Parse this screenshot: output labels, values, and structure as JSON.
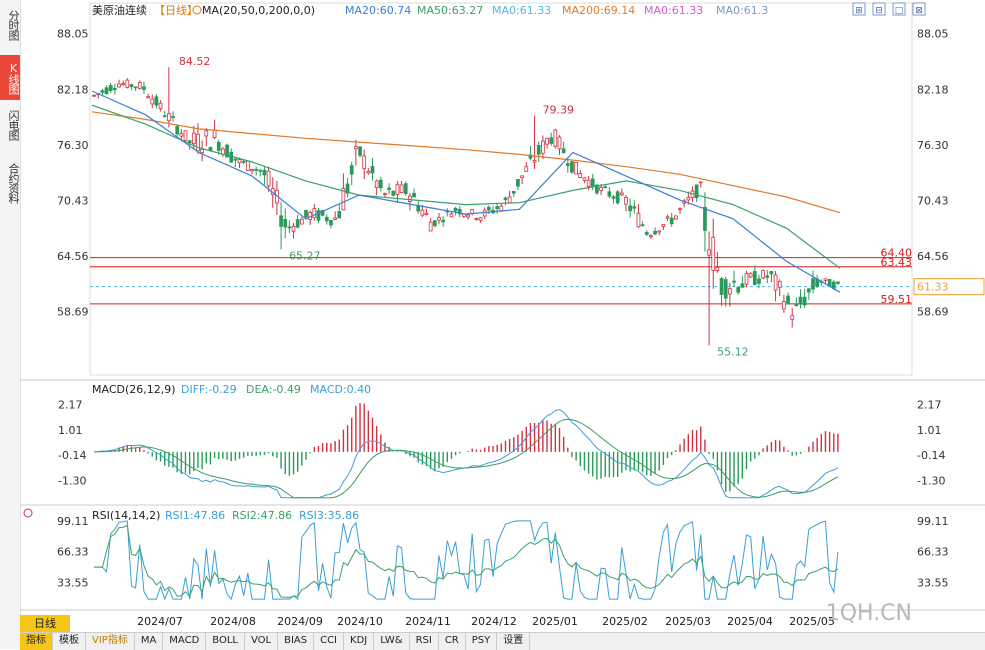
{
  "sidebar": {
    "tabs": [
      {
        "label": "分时图",
        "active": false
      },
      {
        "label": "K线图",
        "active": true
      },
      {
        "label": "闪电图",
        "active": false
      },
      {
        "label": "合约资料",
        "active": false
      }
    ]
  },
  "header": {
    "instrument": "美原油连续",
    "period_tag": "【日线】",
    "ma_legend": "MA(20,50,0,200,0,0)",
    "ma_values": [
      {
        "text": "MA20:60.74",
        "color": "#3a7fd5"
      },
      {
        "text": "MA50:63.27",
        "color": "#3aa06a"
      },
      {
        "text": "MA0:61.33",
        "color": "#4fb8e0"
      },
      {
        "text": "MA200:69.14",
        "color": "#e07a2a"
      },
      {
        "text": "MA0:61.33",
        "color": "#d05cd0"
      },
      {
        "text": "MA0:61.3",
        "color": "#7a9acb"
      }
    ]
  },
  "price_panel": {
    "y_ticks": [
      "88.05",
      "82.18",
      "76.30",
      "70.43",
      "64.56",
      "58.69"
    ],
    "hlines": [
      {
        "label": "64.40",
        "value": 64.4,
        "color": "#d02020"
      },
      {
        "label": "63.43",
        "value": 63.43,
        "color": "#d02020"
      },
      {
        "label": "59.51",
        "value": 59.51,
        "color": "#d02020"
      }
    ],
    "current_price": {
      "label": "61.33",
      "value": 61.33
    },
    "annotations": [
      {
        "label": "84.52",
        "color": "#d03040"
      },
      {
        "label": "65.27",
        "color": "#3aa06a"
      },
      {
        "label": "79.39",
        "color": "#d03040"
      },
      {
        "label": "55.12",
        "color": "#3aa06a"
      }
    ]
  },
  "macd_panel": {
    "title": "MACD(26,12,9)",
    "values": [
      {
        "text": "DIFF:-0.29",
        "color": "#3a9fd5"
      },
      {
        "text": "DEA:-0.49",
        "color": "#3aa06a"
      },
      {
        "text": "MACD:0.40",
        "color": "#3a9fd5"
      }
    ],
    "y_ticks": [
      "2.17",
      "1.01",
      "-0.14",
      "-1.30"
    ]
  },
  "rsi_panel": {
    "title": "RSI(14,14,2)",
    "values": [
      {
        "text": "RSI1:47.86",
        "color": "#3a9fd5"
      },
      {
        "text": "RSI2:47.86",
        "color": "#3aa06a"
      },
      {
        "text": "RSI3:35.86",
        "color": "#3a9fd5"
      }
    ],
    "y_ticks": [
      "99.11",
      "66.33",
      "33.55"
    ]
  },
  "x_axis": {
    "labels": [
      "2024/07",
      "2024/08",
      "2024/09",
      "2024/10",
      "2024/11",
      "2024/12",
      "2025/01",
      "2025/02",
      "2025/03",
      "2025/04",
      "2025/05"
    ]
  },
  "watermark": "1QH.CN",
  "period_label": "日线",
  "bottom_bar": [
    {
      "label": "指标",
      "active": true,
      "vip": false
    },
    {
      "label": "模板",
      "active": false,
      "vip": false
    },
    {
      "label": "VIP指标",
      "active": false,
      "vip": true
    },
    {
      "label": "MA",
      "active": false,
      "vip": false
    },
    {
      "label": "MACD",
      "active": false,
      "vip": false
    },
    {
      "label": "BOLL",
      "active": false,
      "vip": false
    },
    {
      "label": "VOL",
      "active": false,
      "vip": false
    },
    {
      "label": "BIAS",
      "active": false,
      "vip": false
    },
    {
      "label": "CCI",
      "active": false,
      "vip": false
    },
    {
      "label": "KDJ",
      "active": false,
      "vip": false
    },
    {
      "label": "LW&",
      "active": false,
      "vip": false
    },
    {
      "label": "RSI",
      "active": false,
      "vip": false
    },
    {
      "label": "CR",
      "active": false,
      "vip": false
    },
    {
      "label": "PSY",
      "active": false,
      "vip": false
    },
    {
      "label": "设置",
      "active": false,
      "vip": false
    }
  ],
  "corner_icons": [
    "expand-icon",
    "restore-icon",
    "maximize-icon",
    "close-icon"
  ],
  "chart_data": {
    "type": "candlestick",
    "title": "美原油连续【日线】",
    "ylim": [
      52.0,
      89.5
    ],
    "ohlc_weekly_approx": [
      {
        "x": "2024/07",
        "o": 81.5,
        "h": 83.5,
        "l": 80.5,
        "c": 82.8
      },
      {
        "x": "2024/07",
        "o": 82.8,
        "h": 84.52,
        "l": 81.8,
        "c": 82.5
      },
      {
        "x": "2024/07",
        "o": 82.5,
        "h": 83.0,
        "l": 79.0,
        "c": 79.5
      },
      {
        "x": "2024/08",
        "o": 79.5,
        "h": 80.0,
        "l": 75.8,
        "c": 76.5
      },
      {
        "x": "2024/08",
        "o": 76.5,
        "h": 79.5,
        "l": 72.0,
        "c": 77.0
      },
      {
        "x": "2024/08",
        "o": 77.0,
        "h": 78.5,
        "l": 73.0,
        "c": 74.5
      },
      {
        "x": "2024/08",
        "o": 74.5,
        "h": 76.0,
        "l": 72.5,
        "c": 73.5
      },
      {
        "x": "2024/09",
        "o": 73.5,
        "h": 74.0,
        "l": 65.27,
        "c": 67.5
      },
      {
        "x": "2024/09",
        "o": 67.5,
        "h": 70.5,
        "l": 66.0,
        "c": 69.0
      },
      {
        "x": "2024/09",
        "o": 69.0,
        "h": 72.0,
        "l": 67.5,
        "c": 68.5
      },
      {
        "x": "2024/10",
        "o": 68.5,
        "h": 78.5,
        "l": 67.8,
        "c": 75.5
      },
      {
        "x": "2024/10",
        "o": 75.5,
        "h": 77.0,
        "l": 70.5,
        "c": 71.0
      },
      {
        "x": "2024/10",
        "o": 71.0,
        "h": 72.5,
        "l": 67.0,
        "c": 71.5
      },
      {
        "x": "2024/11",
        "o": 71.5,
        "h": 72.0,
        "l": 66.5,
        "c": 68.0
      },
      {
        "x": "2024/11",
        "o": 68.0,
        "h": 70.5,
        "l": 67.5,
        "c": 69.5
      },
      {
        "x": "2024/12",
        "o": 69.5,
        "h": 70.5,
        "l": 67.5,
        "c": 68.8
      },
      {
        "x": "2024/12",
        "o": 68.8,
        "h": 71.5,
        "l": 68.0,
        "c": 70.0
      },
      {
        "x": "2025/01",
        "o": 70.0,
        "h": 74.5,
        "l": 69.5,
        "c": 74.0
      },
      {
        "x": "2025/01",
        "o": 74.0,
        "h": 79.39,
        "l": 73.5,
        "c": 77.5
      },
      {
        "x": "2025/01",
        "o": 77.5,
        "h": 78.0,
        "l": 73.0,
        "c": 73.5
      },
      {
        "x": "2025/02",
        "o": 73.5,
        "h": 74.5,
        "l": 71.0,
        "c": 71.5
      },
      {
        "x": "2025/02",
        "o": 71.5,
        "h": 73.0,
        "l": 69.5,
        "c": 70.5
      },
      {
        "x": "2025/03",
        "o": 70.5,
        "h": 71.0,
        "l": 65.5,
        "c": 67.0
      },
      {
        "x": "2025/03",
        "o": 67.0,
        "h": 69.5,
        "l": 66.0,
        "c": 68.5
      },
      {
        "x": "2025/03",
        "o": 68.5,
        "h": 72.0,
        "l": 68.0,
        "c": 71.5
      },
      {
        "x": "2025/04",
        "o": 71.5,
        "h": 71.8,
        "l": 58.0,
        "c": 61.5
      },
      {
        "x": "2025/04",
        "o": 61.5,
        "h": 63.5,
        "l": 55.12,
        "c": 62.0
      },
      {
        "x": "2025/04",
        "o": 62.0,
        "h": 64.5,
        "l": 60.0,
        "c": 62.5
      },
      {
        "x": "2025/05",
        "o": 62.5,
        "h": 63.0,
        "l": 56.0,
        "c": 58.5
      },
      {
        "x": "2025/05",
        "o": 58.5,
        "h": 63.5,
        "l": 57.5,
        "c": 62.0
      },
      {
        "x": "2025/05",
        "o": 62.0,
        "h": 63.0,
        "l": 60.5,
        "c": 61.33
      }
    ],
    "ma200": [
      79.8,
      79.0,
      78.0,
      77.5,
      77.0,
      76.6,
      76.2,
      75.8,
      75.3,
      74.7,
      74.0,
      73.2,
      72.0,
      70.8,
      69.14
    ],
    "ma50": [
      80.5,
      78.5,
      76.0,
      74.5,
      72.5,
      71.0,
      70.5,
      70.0,
      70.2,
      71.5,
      72.5,
      71.5,
      70.0,
      67.5,
      63.27
    ],
    "ma20": [
      82.0,
      79.5,
      75.5,
      73.0,
      68.5,
      71.0,
      70.0,
      69.0,
      69.5,
      75.5,
      73.0,
      70.5,
      68.5,
      64.0,
      60.74
    ],
    "macd_ylim": [
      -2.2,
      2.6
    ],
    "rsi_ylim": [
      15,
      100
    ]
  }
}
